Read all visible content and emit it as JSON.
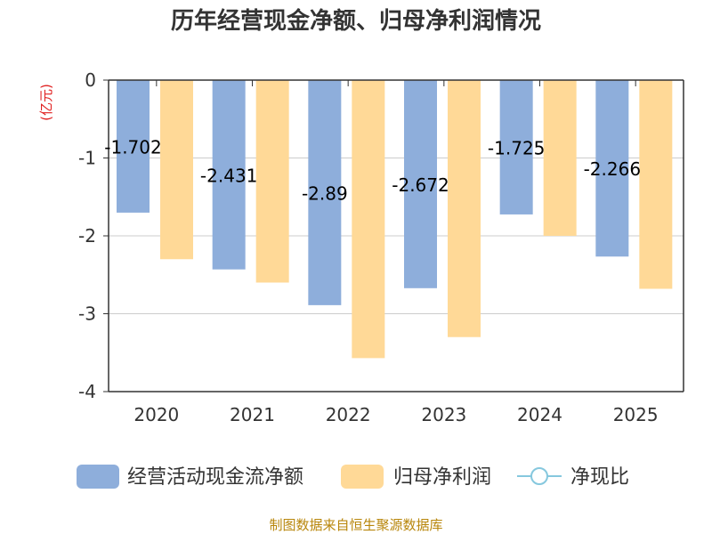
{
  "chart_data": {
    "type": "bar",
    "title": "历年经营现金净额、归母净利润情况",
    "unit_label": "(亿元)",
    "categories": [
      "2020",
      "2021",
      "2022",
      "2023",
      "2024",
      "2025"
    ],
    "series": [
      {
        "name": "经营活动现金流净额",
        "color": "#8eaedb",
        "values": [
          -1.702,
          -2.431,
          -2.89,
          -2.672,
          -1.725,
          -2.266
        ],
        "labels": [
          "-1.702",
          "-2.431",
          "-2.89",
          "-2.672",
          "-1.725",
          "-2.266"
        ]
      },
      {
        "name": "归母净利润",
        "color": "#ffd997",
        "values": [
          -2.3,
          -2.6,
          -3.57,
          -3.3,
          -2.0,
          -2.68
        ]
      }
    ],
    "line_legend": {
      "name": "净现比",
      "color": "#86c8de"
    },
    "yticks": [
      "0",
      "-1",
      "-2",
      "-3",
      "-4"
    ],
    "ylim": [
      -4,
      0
    ],
    "grid": true,
    "legend_position": "bottom"
  },
  "source": "制图数据来自恒生聚源数据库"
}
